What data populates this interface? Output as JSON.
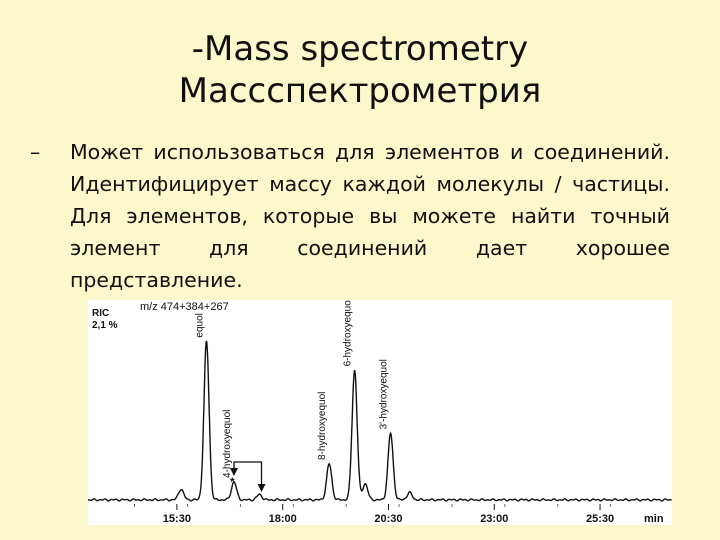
{
  "slide": {
    "title_line1": "-Mass spectrometry",
    "title_line2": "Массспектрометрия",
    "bullet_marker": "–",
    "bullet_text": "Может использоваться для элементов и соединений. Идентифицирует массу каждой молекулы / частицы. Для элементов, которые вы можете найти точный элемент для соединений дает хорошее представление."
  },
  "chart_data": {
    "type": "line",
    "title": "m/z 474+384+267",
    "ylabel_line1": "RIC",
    "ylabel_line2": "2,1 %",
    "x_tick_labels": [
      "15:30",
      "18:00",
      "20:30",
      "23:00",
      "25:30"
    ],
    "x_unit": "min",
    "x_ticks": [
      15.5,
      18.0,
      20.5,
      23.0,
      25.5
    ],
    "xlim": [
      13.4,
      27.2
    ],
    "ylim": [
      0,
      100
    ],
    "peaks": [
      {
        "t": 15.6,
        "h": 6,
        "label": ""
      },
      {
        "t": 16.2,
        "h": 88,
        "label": "equol"
      },
      {
        "t": 16.85,
        "h": 10,
        "label": "4-hydroxyequol"
      },
      {
        "t": 17.45,
        "h": 3,
        "label": ""
      },
      {
        "t": 19.1,
        "h": 20,
        "label": "8-hydroxyequol"
      },
      {
        "t": 19.7,
        "h": 72,
        "label": "6-hydroxyequol"
      },
      {
        "t": 19.95,
        "h": 9,
        "label": ""
      },
      {
        "t": 20.55,
        "h": 37,
        "label": "3'-hydroxyequol"
      },
      {
        "t": 21.0,
        "h": 4,
        "label": ""
      }
    ],
    "annotation": "*"
  }
}
